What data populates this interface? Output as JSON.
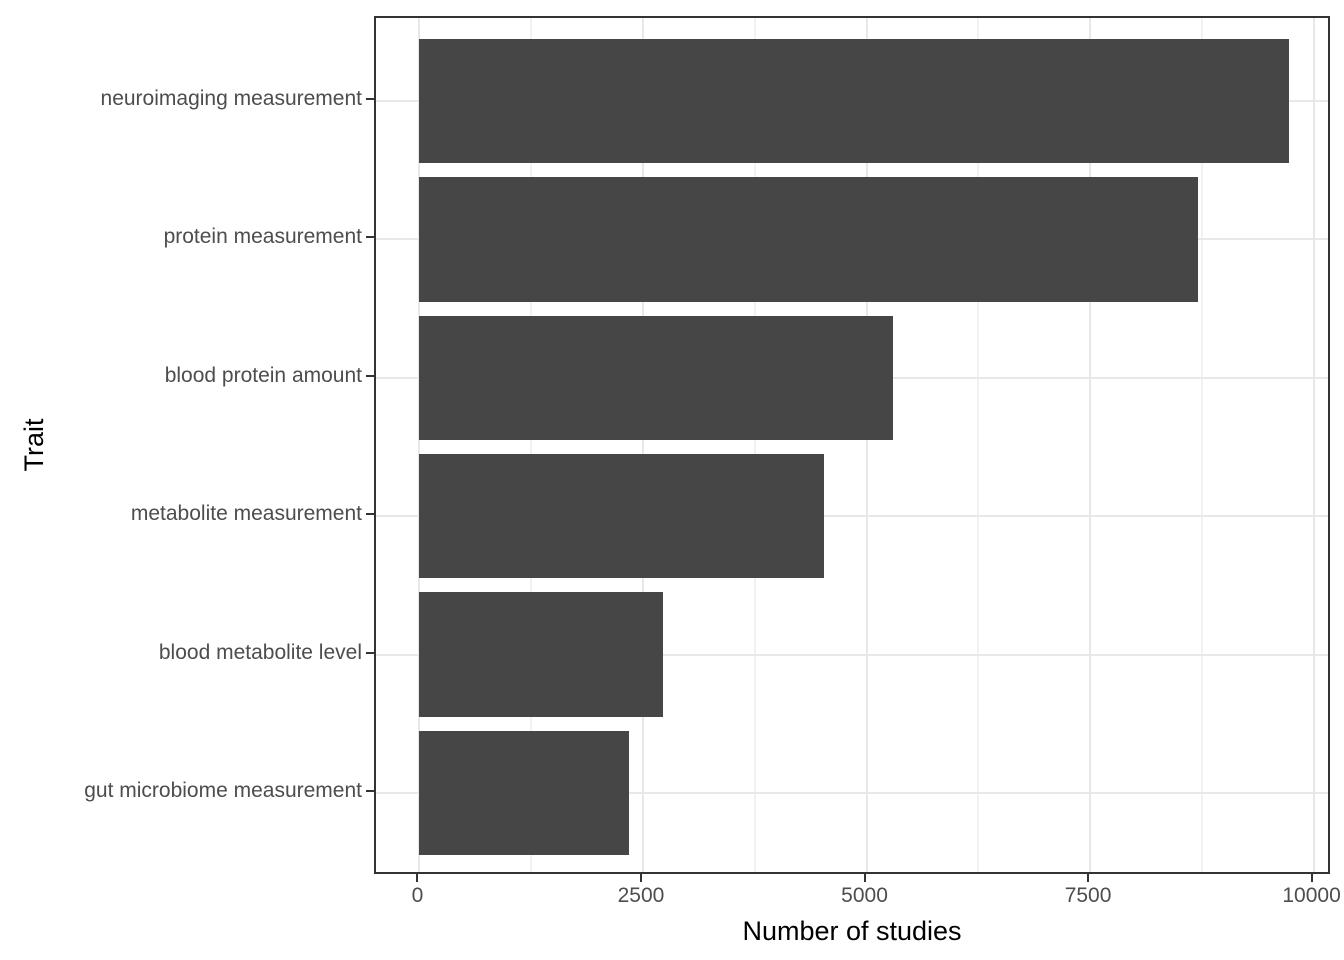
{
  "chart_data": {
    "type": "bar",
    "orientation": "horizontal",
    "title": "",
    "xlabel": "Number of studies",
    "ylabel": "Trait",
    "categories": [
      "neuroimaging measurement",
      "protein measurement",
      "blood protein amount",
      "metabolite measurement",
      "blood metabolite level",
      "gut microbiome measurement"
    ],
    "values": [
      9720,
      8710,
      5300,
      4530,
      2720,
      2340
    ],
    "x_ticks": [
      {
        "value": 0,
        "label": "0"
      },
      {
        "value": 2500,
        "label": "2500"
      },
      {
        "value": 5000,
        "label": "5000"
      },
      {
        "value": 7500,
        "label": "7500"
      },
      {
        "value": 10000,
        "label": "10000"
      }
    ],
    "x_minor_ticks": [
      1250,
      3750,
      6250,
      8750
    ],
    "xlim": [
      -486,
      10206
    ],
    "y_domain": [
      0.4,
      6.6
    ],
    "bar_width_units": 0.9,
    "grid": true,
    "legend": false,
    "colors": {
      "bar": "#464646",
      "panel_border": "#333333",
      "grid_major": "#e8e8e8",
      "grid_minor": "#f2f2f2",
      "tick_mark": "#333333",
      "tick_label": "#4d4d4d",
      "axis_title": "#000000",
      "background": "#ffffff"
    }
  }
}
